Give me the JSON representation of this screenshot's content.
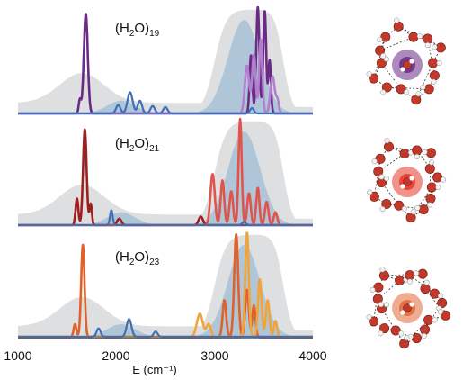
{
  "chart_data": {
    "type": "line",
    "xlabel": "E (cm⁻¹)",
    "xlim": [
      1000,
      4000
    ],
    "x_ticks": [
      "1000",
      "2000",
      "3000",
      "4000"
    ],
    "grid": false,
    "panels": [
      {
        "label_base": "(H",
        "label_sub1": "2",
        "label_mid": "O)",
        "label_sub2": "19",
        "accent": "#6a2a85",
        "accent_light": "#b27fcf",
        "series": [
          {
            "color": "#6a2a85",
            "peaks": [
              [
                1690,
                0.94,
                20
              ],
              [
                1630,
                0.13,
                12
              ],
              [
                3440,
                1.0,
                16
              ],
              [
                3510,
                0.97,
                15
              ],
              [
                3370,
                0.55,
                14
              ],
              [
                3560,
                0.5,
                13
              ]
            ]
          },
          {
            "color": "#b27fcf",
            "peaks": [
              [
                3330,
                0.45,
                22
              ],
              [
                3400,
                0.55,
                18
              ],
              [
                3470,
                0.7,
                16
              ],
              [
                3590,
                0.35,
                22
              ],
              [
                3640,
                0.12,
                15
              ]
            ]
          },
          {
            "color": "#3f6fb5",
            "peaks": [
              [
                2140,
                0.2,
                26
              ],
              [
                2020,
                0.08,
                22
              ],
              [
                2240,
                0.12,
                22
              ],
              [
                2370,
                0.07,
                22
              ],
              [
                2500,
                0.06,
                22
              ],
              [
                3380,
                0.05,
                20
              ]
            ]
          }
        ]
      },
      {
        "label_base": "(H",
        "label_sub1": "2",
        "label_mid": "O)",
        "label_sub2": "21",
        "accent": "#9e1f1f",
        "accent_light": "#e2544b",
        "series": [
          {
            "color": "#9e1f1f",
            "peaks": [
              [
                1680,
                0.9,
                18
              ],
              [
                1600,
                0.25,
                14
              ],
              [
                1740,
                0.2,
                12
              ],
              [
                2030,
                0.06,
                22
              ],
              [
                2860,
                0.08,
                22
              ]
            ]
          },
          {
            "color": "#e2544b",
            "peaks": [
              [
                3260,
                1.0,
                16
              ],
              [
                2980,
                0.48,
                22
              ],
              [
                3080,
                0.42,
                18
              ],
              [
                3170,
                0.32,
                18
              ],
              [
                3350,
                0.3,
                18
              ],
              [
                3440,
                0.35,
                16
              ],
              [
                3530,
                0.22,
                18
              ],
              [
                3620,
                0.12,
                18
              ]
            ]
          },
          {
            "color": "#3f6fb5",
            "peaks": [
              [
                1950,
                0.14,
                14
              ],
              [
                3300,
                0.03,
                20
              ]
            ]
          }
        ]
      },
      {
        "label_base": "(H",
        "label_sub1": "2",
        "label_mid": "O)",
        "label_sub2": "23",
        "accent": "#e0622a",
        "accent_light": "#f0a43a",
        "series": [
          {
            "color": "#e0622a",
            "peaks": [
              [
                1660,
                0.88,
                17
              ],
              [
                1580,
                0.12,
                14
              ],
              [
                3220,
                0.98,
                20
              ],
              [
                3100,
                0.35,
                18
              ],
              [
                3330,
                0.45,
                18
              ],
              [
                3400,
                0.3,
                16
              ]
            ]
          },
          {
            "color": "#f0a43a",
            "peaks": [
              [
                2850,
                0.22,
                30
              ],
              [
                2940,
                0.12,
                22
              ],
              [
                3330,
                1.0,
                18
              ],
              [
                3460,
                0.55,
                18
              ],
              [
                3540,
                0.35,
                18
              ],
              [
                3620,
                0.15,
                16
              ]
            ]
          },
          {
            "color": "#3f6fb5",
            "peaks": [
              [
                1820,
                0.08,
                20
              ],
              [
                2130,
                0.17,
                24
              ],
              [
                2400,
                0.05,
                20
              ]
            ]
          }
        ]
      }
    ]
  },
  "clusters": [
    {
      "name": "(H2O)19 cluster",
      "center_color": "#6a2a85"
    },
    {
      "name": "(H2O)21 cluster",
      "center_color": "#e23a2a"
    },
    {
      "name": "(H2O)23 cluster",
      "center_color": "#e06a3a"
    }
  ],
  "background_colors": {
    "gray": "#d7d9dc",
    "blue": "#9fbcd4"
  }
}
